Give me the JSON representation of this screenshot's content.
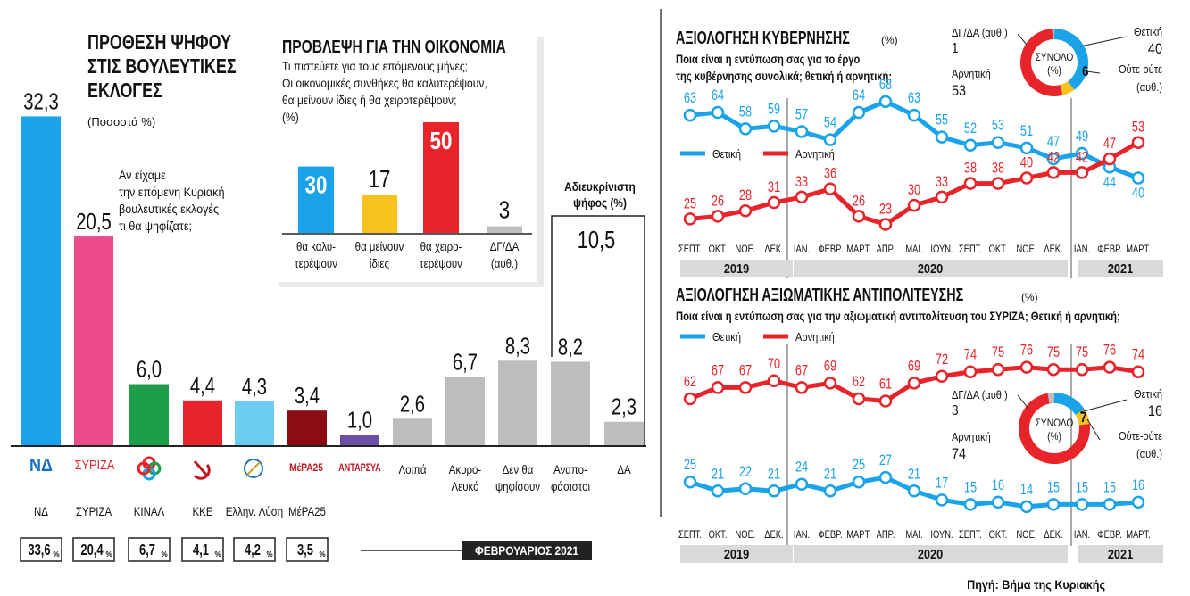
{
  "colors": {
    "blue": "#1aa3e8",
    "red": "#e8232a",
    "pink": "#ec4c8c",
    "green": "#1f9e4a",
    "lightblue": "#6ccdf2",
    "darkred": "#8b0c12",
    "purple": "#6a4fa5",
    "gray": "#bdbdbd",
    "yellow": "#f7c21b",
    "band": "#d9d9d9"
  },
  "left": {
    "title": "ΠΡΟΘΕΣΗ ΨΗΦΟΥ ΣΤΙΣ ΒΟΥΛΕΥΤΙΚΕΣ ΕΚΛΟΓΕΣ",
    "title_lines": [
      "ΠΡΟΘΕΣΗ ΨΗΦΟΥ",
      "ΣΤΙΣ ΒΟΥΛΕΥΤΙΚΕΣ",
      "ΕΚΛΟΓΕΣ"
    ],
    "unit": "(Ποσοστά %)",
    "question_lines": [
      "Αν είχαμε",
      "την επόμενη Κυριακή",
      "βουλευτικές εκλογές",
      "τι θα ψηφίζατε;"
    ],
    "undecided_label_lines": [
      "Αδιευκρίνιστη",
      "ψήφος (%)"
    ],
    "undecided_value": "10,5",
    "month_label": "ΦΕΒΡΟΥΑΡΙΟΣ 2021",
    "logos": [
      "ΝΔ",
      "ΣΥΡΙΖΑ",
      "ΚΙΝΑΛ",
      "ΚΚΕ",
      "Ελλην. Λύση",
      "ΜέΡΑ25",
      "ΑΝΤΑΡΣΥΑ"
    ]
  },
  "chart_data": [
    {
      "type": "bar",
      "title": "ΠΡΟΘΕΣΗ ΨΗΦΟΥ ΣΤΙΣ ΒΟΥΛΕΥΤΙΚΕΣ ΕΚΛΟΓΕΣ",
      "ylabel": "(Ποσοστά %)",
      "ylim": [
        0,
        34
      ],
      "categories": [
        "ΝΔ",
        "ΣΥΡΙΖΑ",
        "ΚΙΝΑΛ",
        "ΚΚΕ",
        "Ελλην. Λύση",
        "ΜέΡΑ25",
        "ΑΝΤΑΡΣΥΑ",
        "Λοιπά",
        "Ακυρο-Λευκό",
        "Δεν θα ψηφίσουν",
        "Αναποφάσιστοι",
        "ΔΑ"
      ],
      "category_lines": [
        [],
        [],
        [],
        [],
        [],
        [],
        [],
        [
          "Λοιπά"
        ],
        [
          "Ακυρο-",
          "Λευκό"
        ],
        [
          "Δεν θα",
          "ψηφίσουν"
        ],
        [
          "Αναπο-",
          "φάσιστοι"
        ],
        [
          "ΔΑ"
        ]
      ],
      "values": [
        32.3,
        20.5,
        6.0,
        4.4,
        4.3,
        3.4,
        1.0,
        2.6,
        6.7,
        8.3,
        8.2,
        2.3
      ],
      "value_labels": [
        "32,3",
        "20,5",
        "6,0",
        "4,4",
        "4,3",
        "3,4",
        "1,0",
        "2,6",
        "6,7",
        "8,3",
        "8,2",
        "2,3"
      ],
      "colors": [
        "#1aa3e8",
        "#ec4c8c",
        "#1f9e4a",
        "#e8232a",
        "#6ccdf2",
        "#8b0c12",
        "#6a4fa5",
        "#bdbdbd",
        "#bdbdbd",
        "#bdbdbd",
        "#bdbdbd",
        "#bdbdbd"
      ],
      "party_names": [
        "ΝΔ",
        "ΣΥΡΙΖΑ",
        "ΚΙΝΑΛ",
        "ΚΚΕ",
        "Ελλην. Λύση",
        "ΜέΡΑ25"
      ],
      "estimates": [
        "33,6",
        "20,4",
        "6,7",
        "4,1",
        "4,2",
        "3,5"
      ]
    },
    {
      "type": "bar",
      "title": "ΠΡΟΒΛΕΨΗ ΓΙΑ ΤΗΝ ΟΙΚΟΝΟΜΙΑ",
      "question_lines": [
        "Τι πιστεύετε για τους επόμενους μήνες;",
        "Οι οικονομικές συνθήκες θα καλυτερέψουν,",
        "θα μείνουν ίδιες ή θα χειροτερέψουν;",
        "(%)"
      ],
      "categories": [
        "θα καλυτερέψουν",
        "θα μείνουν ίδιες",
        "θα χειροτερέψουν",
        "ΔΓ/ΔΑ (αυθ.)"
      ],
      "category_lines": [
        [
          "θα καλυ-",
          "τερέψουν"
        ],
        [
          "θα μείνουν",
          "ίδιες"
        ],
        [
          "θα χειρο-",
          "τερέψουν"
        ],
        [
          "ΔΓ/ΔΑ",
          "(αυθ.)"
        ]
      ],
      "values": [
        30,
        17,
        50,
        3
      ],
      "colors": [
        "#1aa3e8",
        "#f7c21b",
        "#e8232a",
        "#bdbdbd"
      ],
      "ylim": [
        0,
        50
      ]
    },
    {
      "type": "line",
      "title": "ΑΞΙΟΛΟΓΗΣΗ ΚΥΒΕΡΝΗΣΗΣ",
      "unit": "(%)",
      "question_lines": [
        "Ποια είναι η εντύπωση σας για το έργο",
        "της κυβέρνησης συνολικά; θετική ή αρνητική;"
      ],
      "x": [
        "ΣΕΠΤ.",
        "ΟΚΤ.",
        "ΝΟΕ.",
        "ΔΕΚ.",
        "ΙΑΝ.",
        "ΦΕΒΡ.",
        "ΜΑΡΤ.",
        "ΑΠΡ.",
        "ΜΑΙ.",
        "ΙΟΥΝ.",
        "ΣΕΠΤ.",
        "ΟΚΤ.",
        "ΝΟΕ.",
        "ΔΕΚ.",
        "ΙΑΝ.",
        "ΦΕΒΡ.",
        "ΜΑΡΤ."
      ],
      "years": [
        "2019",
        "2020",
        "2021"
      ],
      "series": [
        {
          "name": "Θετική",
          "color": "#1aa3e8",
          "values": [
            63,
            64,
            58,
            59,
            57,
            54,
            64,
            68,
            63,
            55,
            52,
            53,
            51,
            47,
            49,
            44,
            40
          ]
        },
        {
          "name": "Αρνητική",
          "color": "#e8232a",
          "values": [
            25,
            26,
            28,
            31,
            33,
            36,
            26,
            23,
            30,
            33,
            38,
            38,
            40,
            42,
            42,
            47,
            53
          ]
        }
      ],
      "ylim": [
        15,
        75
      ],
      "donut": {
        "center_lines": [
          "ΣΥΝΟΛΟ",
          "(%)"
        ],
        "slices": [
          {
            "name": "Θετική",
            "value": 40,
            "color": "#1aa3e8"
          },
          {
            "name": "Ούτε-ούτε (αυθ.)",
            "value": 6,
            "color": "#f7c21b"
          },
          {
            "name": "Αρνητική",
            "value": 53,
            "color": "#e8232a"
          },
          {
            "name": "ΔΓ/ΔΑ (αυθ.)",
            "value": 1,
            "color": "#bdbdbd"
          }
        ],
        "labels": {
          "dgda": "ΔΓ/ΔΑ (αυθ.)",
          "dgda_value": "1",
          "pos": "Θετική",
          "pos_value": "40",
          "neutral": "Ούτε-ούτε",
          "neutral_value": "6",
          "neutral_sub": "(αυθ.)",
          "neg": "Αρνητική",
          "neg_value": "53"
        }
      }
    },
    {
      "type": "line",
      "title": "ΑΞΙΟΛΟΓΗΣΗ ΑΞΙΩΜΑΤΙΚΗΣ ΑΝΤΙΠΟΛΙΤΕΥΣΗΣ",
      "unit": "(%)",
      "question_lines": [
        "Ποια είναι η εντύπωση σας για την αξιωματική αντιπολίτευση του ΣΥΡΙΖΑ; Θετική ή αρνητική;"
      ],
      "x": [
        "ΣΕΠΤ.",
        "ΟΚΤ.",
        "ΝΟΕ.",
        "ΔΕΚ.",
        "ΙΑΝ.",
        "ΦΕΒΡ.",
        "ΜΑΡΤ.",
        "ΑΠΡ.",
        "ΜΑΙ.",
        "ΙΟΥΝ.",
        "ΣΕΠΤ.",
        "ΟΚΤ.",
        "ΝΟΕ.",
        "ΔΕΚ.",
        "ΙΑΝ.",
        "ΦΕΒΡ.",
        "ΜΑΡΤ."
      ],
      "years": [
        "2019",
        "2020",
        "2021"
      ],
      "series": [
        {
          "name": "Θετική",
          "color": "#1aa3e8",
          "values": [
            25,
            21,
            22,
            21,
            24,
            21,
            25,
            27,
            21,
            17,
            15,
            16,
            14,
            15,
            15,
            15,
            16
          ]
        },
        {
          "name": "Αρνητική",
          "color": "#e8232a",
          "values": [
            62,
            67,
            67,
            70,
            67,
            69,
            62,
            61,
            69,
            72,
            74,
            75,
            76,
            75,
            75,
            76,
            74
          ]
        }
      ],
      "ylim": [
        10,
        80
      ],
      "donut": {
        "center_lines": [
          "ΣΥΝΟΛΟ",
          "(%)"
        ],
        "slices": [
          {
            "name": "Θετική",
            "value": 16,
            "color": "#1aa3e8"
          },
          {
            "name": "Ούτε-ούτε (αυθ.)",
            "value": 7,
            "color": "#f7c21b"
          },
          {
            "name": "Αρνητική",
            "value": 74,
            "color": "#e8232a"
          },
          {
            "name": "ΔΓ/ΔΑ (αυθ.)",
            "value": 3,
            "color": "#bdbdbd"
          }
        ],
        "labels": {
          "dgda": "ΔΓ/ΔΑ (αυθ.)",
          "dgda_value": "3",
          "pos": "Θετική",
          "pos_value": "16",
          "neutral": "Ούτε-ούτε",
          "neutral_value": "7",
          "neutral_sub": "(αυθ.)",
          "neg": "Αρνητική",
          "neg_value": "74"
        }
      }
    }
  ],
  "source": "Πηγή: Βήμα της Κυριακής"
}
